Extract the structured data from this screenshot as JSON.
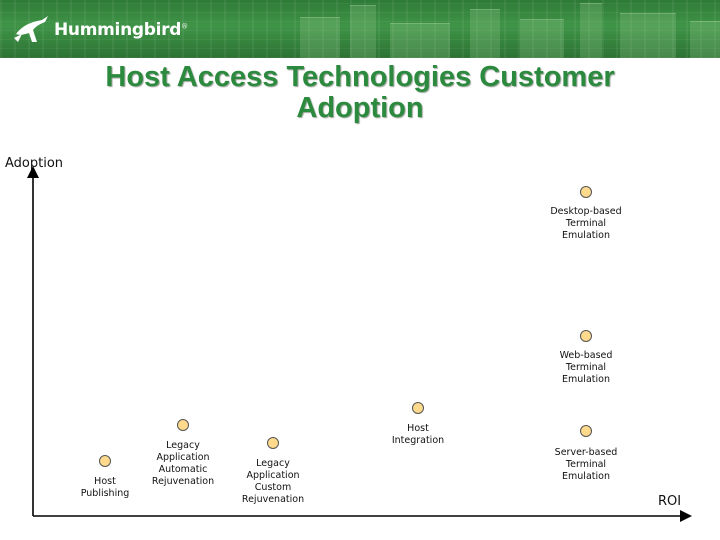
{
  "header": {
    "brand": "Hummingbird",
    "brand_mark": "®"
  },
  "slide": {
    "title": "Host Access Technologies Customer Adoption"
  },
  "axes": {
    "y_label": "Adoption",
    "x_label": "ROI"
  },
  "nodes": [
    {
      "label": "Desktop-based\nTerminal\nEmulation"
    },
    {
      "label": "Web-based\nTerminal\nEmulation"
    },
    {
      "label": "Host\nIntegration"
    },
    {
      "label": "Server-based\nTerminal\nEmulation"
    },
    {
      "label": "Legacy\nApplication\nAutomatic\nRejuvenation"
    },
    {
      "label": "Legacy\nApplication\nCustom\nRejuvenation"
    },
    {
      "label": "Host\nPublishing"
    }
  ],
  "colors": {
    "title": "#2b8a3e",
    "banner": "#3f9447",
    "node_fill": "#ffd98c"
  }
}
